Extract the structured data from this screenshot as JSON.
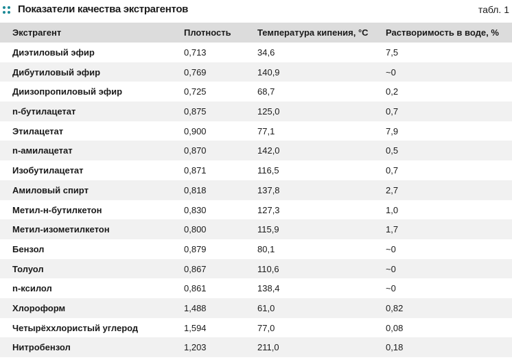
{
  "header": {
    "title": "Показатели качества экстрагентов",
    "label": "табл. 1"
  },
  "table": {
    "columns": [
      "Экстрагент",
      "Плотность",
      "Температура кипения, °С",
      "Растворимость в воде, %"
    ],
    "rows": [
      [
        "Диэтиловый эфир",
        "0,713",
        "34,6",
        "7,5"
      ],
      [
        "Дибутиловый эфир",
        "0,769",
        "140,9",
        "~0"
      ],
      [
        "Диизопропиловый эфир",
        "0,725",
        "68,7",
        "0,2"
      ],
      [
        "n-бутилацетат",
        "0,875",
        "125,0",
        "0,7"
      ],
      [
        "Этилацетат",
        "0,900",
        "77,1",
        "7,9"
      ],
      [
        "n-амилацетат",
        "0,870",
        "142,0",
        "0,5"
      ],
      [
        "Изобутилацетат",
        "0,871",
        "116,5",
        "0,7"
      ],
      [
        "Амиловый спирт",
        "0,818",
        "137,8",
        "2,7"
      ],
      [
        "Метил-н-бутилкетон",
        "0,830",
        "127,3",
        "1,0"
      ],
      [
        "Метил-изометилкетон",
        "0,800",
        "115,9",
        "1,7"
      ],
      [
        "Бензол",
        "0,879",
        "80,1",
        "~0"
      ],
      [
        "Толуол",
        "0,867",
        "110,6",
        "~0"
      ],
      [
        "n-ксилол",
        "0,861",
        "138,4",
        "~0"
      ],
      [
        "Хлороформ",
        "1,488",
        "61,0",
        "0,82"
      ],
      [
        "Четырёххлористый углерод",
        "1,594",
        "77,0",
        "0,08"
      ],
      [
        "Нитробензол",
        "1,203",
        "211,0",
        "0,18"
      ]
    ]
  }
}
